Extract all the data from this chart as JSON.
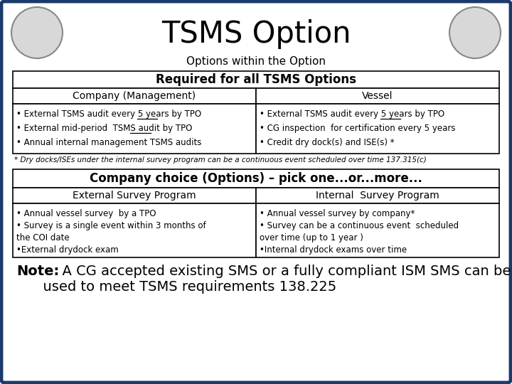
{
  "title": "TSMS Option",
  "subtitle": "Options within the Option",
  "bg_color": "#ffffff",
  "border_color": "#1a3a6b",
  "header1_text": "Required for all TSMS Options",
  "col1_header1": "Company (Management)",
  "col2_header1": "Vessel",
  "col1_body1_lines": [
    [
      "• External TSMS audit every 5 years ",
      "by TPO",
      ""
    ],
    [
      "• External mid-period  TSMS audit ",
      "by TPO",
      ""
    ],
    [
      "• Annual internal management TSMS audits",
      "",
      ""
    ]
  ],
  "col2_body1_lines": [
    [
      "• External TSMS audit every 5 years ",
      "by TPO",
      ""
    ],
    [
      "• CG inspection  for certification every 5 years",
      "",
      ""
    ],
    [
      "• Credit dry dock(s) and ISE(s) *",
      "",
      ""
    ]
  ],
  "footnote": "* Dry docks/ISEs under the internal survey program can be a continuous event scheduled over time 137.315(c)",
  "header2_text": "Company choice (Options) – pick one...or...more...",
  "col1_header2": "External Survey Program",
  "col2_header2": "Internal  Survey Program",
  "col1_body2": [
    "• Annual vessel survey  by a TPO",
    "• Survey is a single event within 3 months of",
    "the COI date",
    "•External drydock exam"
  ],
  "col2_body2": [
    "• Annual vessel survey by company*",
    "• Survey can be a continuous event  scheduled",
    "over time (up to 1 year )",
    "•Internal drydock exams over time"
  ],
  "note_bold": "Note:",
  "note_line1": "  A CG accepted existing SMS or a fully compliant ISM SMS can be",
  "note_line2": "      used to meet TSMS requirements 138.225"
}
